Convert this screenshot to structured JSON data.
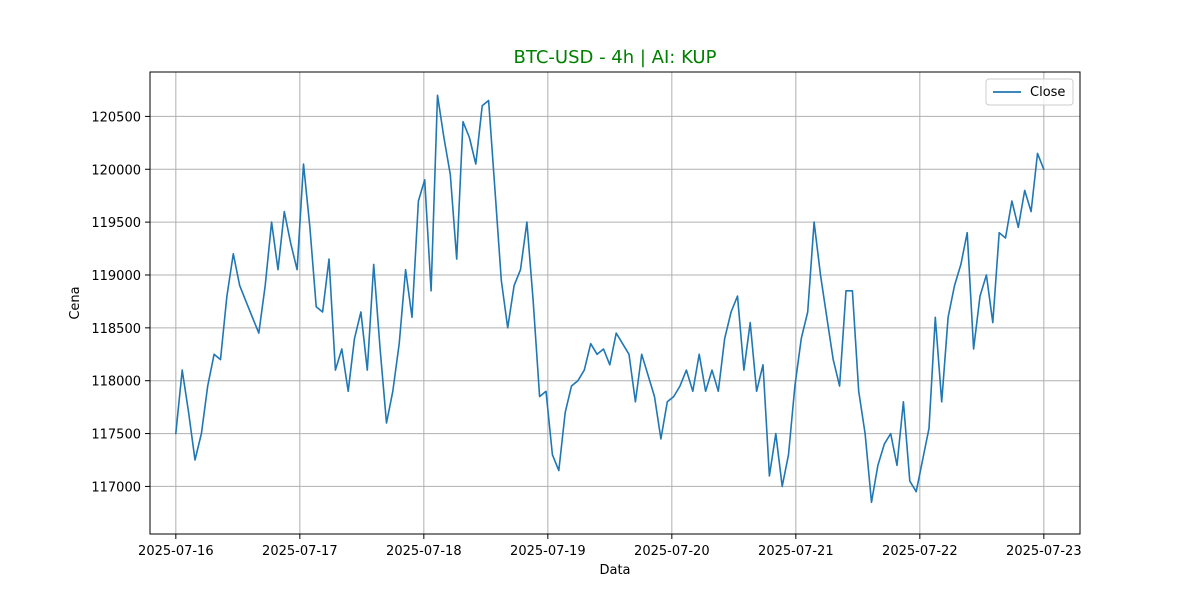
{
  "chart_data": {
    "type": "line",
    "title": "BTC-USD - 4h | AI: KUP",
    "title_color": "#008000",
    "xlabel": "Data",
    "ylabel": "Cena",
    "xlim": [
      "2025-07-15T19:00",
      "2025-07-23T07:00"
    ],
    "ylim": [
      116550,
      120920
    ],
    "x_ticks": [
      "2025-07-16",
      "2025-07-17",
      "2025-07-18",
      "2025-07-19",
      "2025-07-20",
      "2025-07-21",
      "2025-07-22",
      "2025-07-23"
    ],
    "y_ticks": [
      117000,
      117500,
      118000,
      118500,
      119000,
      119500,
      120000,
      120500
    ],
    "grid": true,
    "legend": "top-right",
    "series": [
      {
        "name": "Close",
        "color": "#1f77b4",
        "x_start": "2025-07-16T00:00",
        "x_end": "2025-07-23T00:00",
        "y": [
          117500,
          118100,
          117700,
          117250,
          117500,
          117950,
          118250,
          118200,
          118800,
          119200,
          118900,
          118750,
          118600,
          118450,
          118900,
          119500,
          119050,
          119600,
          119300,
          119050,
          120050,
          119450,
          118700,
          118650,
          119150,
          118100,
          118300,
          117900,
          118400,
          118650,
          118100,
          119100,
          118300,
          117600,
          117900,
          118350,
          119050,
          118600,
          119700,
          119900,
          118850,
          120700,
          120300,
          119950,
          119150,
          120450,
          120300,
          120050,
          120600,
          120650,
          119800,
          118950,
          118500,
          118900,
          119050,
          119500,
          118750,
          117850,
          117900,
          117300,
          117150,
          117700,
          117950,
          118000,
          118100,
          118350,
          118250,
          118300,
          118150,
          118450,
          118350,
          118250,
          117800,
          118250,
          118050,
          117850,
          117450,
          117800,
          117850,
          117950,
          118100,
          117900,
          118250,
          117900,
          118100,
          117900,
          118400,
          118650,
          118800,
          118100,
          118550,
          117900,
          118150,
          117100,
          117500,
          117000,
          117300,
          117950,
          118400,
          118650,
          119500,
          119000,
          118600,
          118200,
          117950,
          118850,
          118850,
          117900,
          117500,
          116850,
          117200,
          117400,
          117500,
          117200,
          117800,
          117050,
          116950,
          117250,
          117550,
          118600,
          117800,
          118600,
          118900,
          119100,
          119400,
          118300,
          118800,
          119000,
          118550,
          119400,
          119350,
          119700,
          119450,
          119800,
          119600,
          120150,
          120000
        ]
      }
    ]
  }
}
